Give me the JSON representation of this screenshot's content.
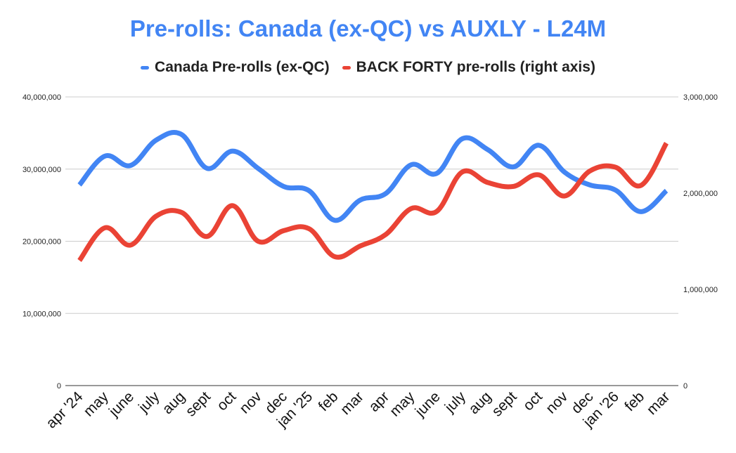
{
  "chart_data": {
    "type": "line",
    "title": "Pre-rolls: Canada (ex-QC) vs AUXLY - L24M",
    "categories": [
      "apr '24",
      "may",
      "june",
      "july",
      "aug",
      "sept",
      "oct",
      "nov",
      "dec",
      "jan '25",
      "feb",
      "mar",
      "apr",
      "may",
      "june",
      "july",
      "aug",
      "sept",
      "oct",
      "nov",
      "dec",
      "jan '26",
      "feb",
      "mar"
    ],
    "series": [
      {
        "name": "Canada Pre-rolls (ex-QC)",
        "axis": "left",
        "color": "#4285f4",
        "values": [
          27800000,
          31800000,
          30500000,
          34000000,
          34800000,
          30100000,
          32500000,
          30100000,
          27600000,
          27000000,
          22900000,
          25700000,
          26600000,
          30600000,
          29400000,
          34200000,
          32700000,
          30300000,
          33300000,
          29600000,
          27800000,
          27100000,
          24100000,
          27000000
        ]
      },
      {
        "name": "BACK FORTY pre-rolls (right axis)",
        "axis": "right",
        "color": "#ea4335",
        "values": [
          1300000,
          1640000,
          1460000,
          1760000,
          1800000,
          1550000,
          1870000,
          1500000,
          1610000,
          1630000,
          1340000,
          1450000,
          1570000,
          1840000,
          1810000,
          2220000,
          2110000,
          2070000,
          2190000,
          1970000,
          2230000,
          2270000,
          2080000,
          2520000
        ]
      }
    ],
    "y_left": {
      "min": 0,
      "max": 40000000,
      "ticks": [
        "0",
        "10,000,000",
        "20,000,000",
        "30,000,000",
        "40,000,000"
      ],
      "tick_values": [
        0,
        10000000,
        20000000,
        30000000,
        40000000
      ]
    },
    "y_right": {
      "min": 0,
      "max": 3000000,
      "ticks": [
        "0",
        "1,000,000",
        "2,000,000",
        "3,000,000"
      ],
      "tick_values": [
        0,
        1000000,
        2000000,
        3000000
      ]
    },
    "grid": true,
    "legend_position": "top",
    "title_color": "#4285f4"
  }
}
